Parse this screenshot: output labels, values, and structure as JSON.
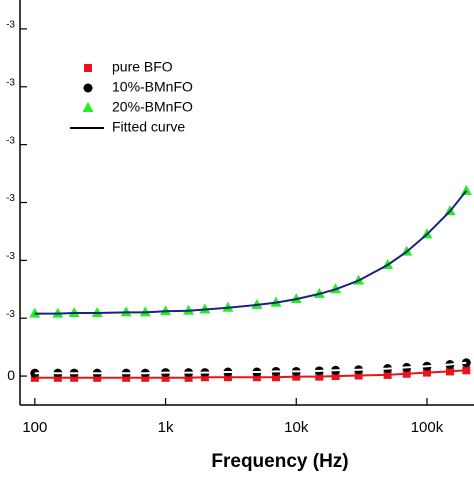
{
  "chart_data": {
    "type": "scatter",
    "x_label": "Frequency (Hz)",
    "log_x": true,
    "xlim": [
      77,
      229000
    ],
    "xticks": [
      100,
      {
        "value": 1000,
        "label": "1k"
      },
      {
        "value": 10000,
        "label": "10k"
      },
      {
        "value": 100000,
        "label": "100k"
      }
    ],
    "ylim": [
      -0.0005,
      0.0065
    ],
    "yticks": [
      0,
      {
        "value": 0.001,
        "label": "-3"
      },
      {
        "value": 0.002,
        "label": "-3"
      },
      {
        "value": 0.003,
        "label": "-3"
      },
      {
        "value": 0.004,
        "label": "-3"
      },
      {
        "value": 0.005,
        "label": "-3"
      },
      {
        "value": 0.006,
        "label": "-3"
      }
    ],
    "x": [
      100,
      150,
      200,
      300,
      500,
      700,
      1000,
      1500,
      2000,
      3000,
      5000,
      7000,
      10000,
      15000,
      20000,
      30000,
      50000,
      70000,
      100000,
      150000,
      200000
    ],
    "series": [
      {
        "name": "pure BFO",
        "color": "#e8141b",
        "marker": "square",
        "fit_color": "#e8141b",
        "values": [
          -3e-05,
          -3e-05,
          -3e-05,
          -3e-05,
          -3e-05,
          -3e-05,
          -3e-05,
          -3e-05,
          -2e-05,
          -2e-05,
          -2e-05,
          -2e-05,
          -1e-05,
          -1e-05,
          0,
          1e-05,
          2e-05,
          4e-05,
          6e-05,
          8e-05,
          0.0001
        ]
      },
      {
        "name": "10%-BMnFO",
        "color": "#000000",
        "marker": "circle",
        "fit_color": "#ffffff",
        "values": [
          5e-05,
          5e-05,
          5e-05,
          5e-05,
          5e-05,
          5e-05,
          6e-05,
          6e-05,
          6e-05,
          7e-05,
          7e-05,
          8e-05,
          8e-05,
          9e-05,
          0.0001,
          0.00011,
          0.00013,
          0.00015,
          0.00017,
          0.0002,
          0.00023
        ]
      },
      {
        "name": "20%-BMnFO",
        "color": "#22ee22",
        "marker": "triangle",
        "fit_color": "#1a237e",
        "values": [
          0.00108,
          0.00108,
          0.00109,
          0.00109,
          0.0011,
          0.0011,
          0.00112,
          0.00113,
          0.00115,
          0.00118,
          0.00123,
          0.00127,
          0.00133,
          0.00142,
          0.0015,
          0.00165,
          0.00192,
          0.00215,
          0.00245,
          0.00285,
          0.0032
        ]
      }
    ],
    "fit": {
      "name": "Fitted curve",
      "color": "#000000"
    }
  }
}
